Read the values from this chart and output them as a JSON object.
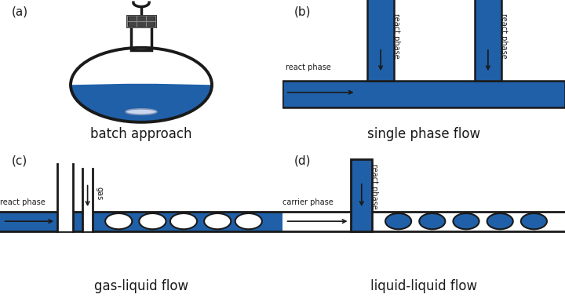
{
  "blue": "#2060a8",
  "black": "#1a1a1a",
  "white": "#ffffff",
  "panel_labels": [
    "(a)",
    "(b)",
    "(c)",
    "(d)"
  ],
  "panel_titles": [
    "batch approach",
    "single phase flow",
    "gas-liquid flow",
    "liquid-liquid flow"
  ],
  "title_fontsize": 12,
  "label_fontsize": 11,
  "annot_fontsize": 7
}
